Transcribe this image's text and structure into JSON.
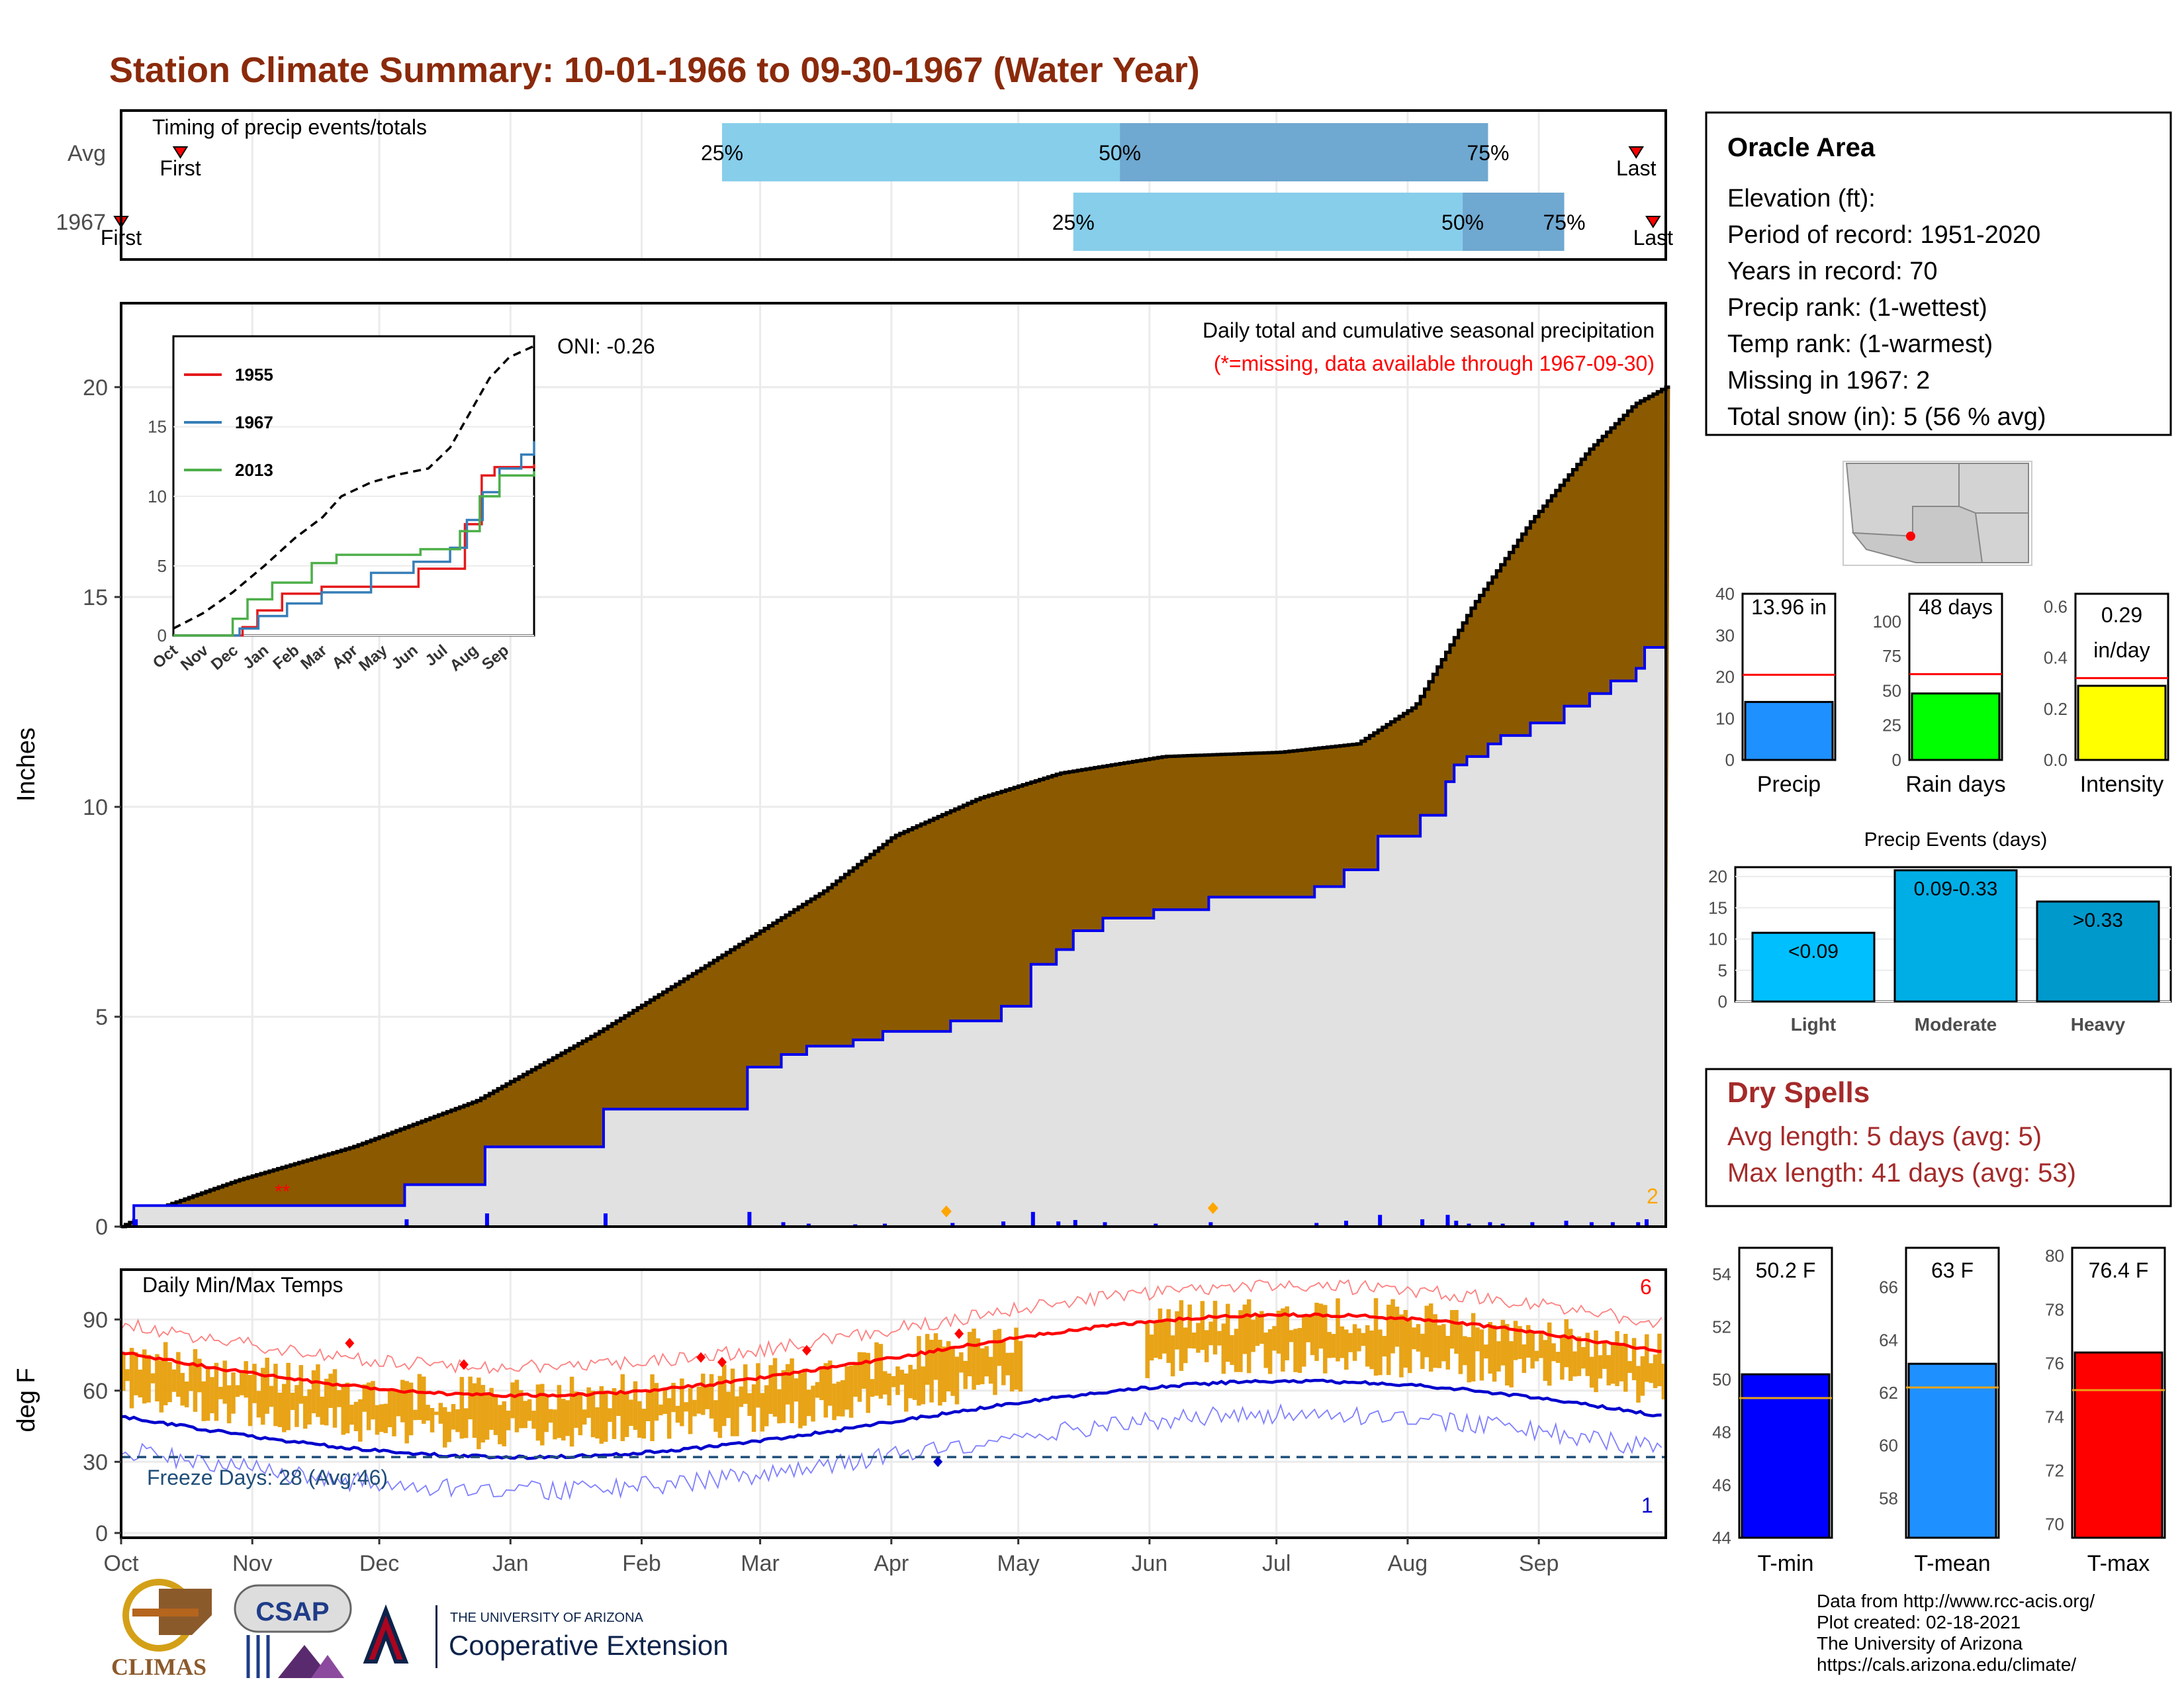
{
  "title": "Station Climate Summary: 10-01-1966 to 09-30-1967 (Water Year)",
  "timing": {
    "label": "Timing of precip events/totals",
    "rows": [
      {
        "label": "Avg",
        "first_label": "First",
        "last_label": "Last",
        "q25_label": "25%",
        "q50_label": "50%",
        "q75_label": "75%",
        "first_day": 14,
        "last_day": 358,
        "q25_day": 142,
        "q50_day": 236,
        "q75_day": 323
      },
      {
        "label": "1967",
        "first_label": "First",
        "last_label": "Last",
        "q25_label": "25%",
        "q50_label": "50%",
        "q75_label": "75%",
        "first_day": 0,
        "last_day": 362,
        "q25_day": 225,
        "q50_day": 317,
        "q75_day": 341
      }
    ]
  },
  "months": [
    "Oct",
    "Nov",
    "Dec",
    "Jan",
    "Feb",
    "Mar",
    "Apr",
    "May",
    "Jun",
    "Jul",
    "Aug",
    "Sep"
  ],
  "precip": {
    "title": "Daily total and cumulative seasonal precipitation",
    "missing_note": "(*=missing, data available through 1967-09-30)",
    "oni": "ONI: -0.26",
    "ylabel": "Inches",
    "y_ticks": [
      "0",
      "5",
      "10",
      "15",
      "20"
    ],
    "corner_count": "2"
  },
  "inset": {
    "legend": [
      {
        "name": "1955",
        "color": "#e41a1c"
      },
      {
        "name": "1967",
        "color": "#377eb8"
      },
      {
        "name": "2013",
        "color": "#4daf4a"
      }
    ],
    "y_ticks": [
      "0",
      "5",
      "10",
      "15"
    ],
    "x_ticks": [
      "Oct",
      "Nov",
      "Dec",
      "Jan",
      "Feb",
      "Mar",
      "Apr",
      "May",
      "Jun",
      "Jul",
      "Aug",
      "Sep"
    ]
  },
  "temps": {
    "title": "Daily Min/Max Temps",
    "ylabel": "deg F",
    "y_ticks": [
      "0",
      "30",
      "60",
      "90"
    ],
    "freeze_label": "Freeze Days: 28 (Avg:46)",
    "record_high_count": "6",
    "record_low_count": "1"
  },
  "info": {
    "station": "Oracle Area",
    "lines": [
      "Elevation (ft):",
      "Period of record: 1951-2020",
      "Years in record: 70",
      "Precip rank:  (1-wettest)",
      "Temp rank:  (1-warmest)",
      "Missing in 1967: 2",
      "Total snow (in): 5 (56 % avg)"
    ]
  },
  "mini_bars": [
    {
      "label": "Precip",
      "value_label": "13.96 in",
      "value": 13.96,
      "avg": 20.5,
      "ymax": 40,
      "ticks": [
        "0",
        "10",
        "20",
        "30",
        "40"
      ],
      "color": "#1e90ff"
    },
    {
      "label": "Rain days",
      "value_label": "48 days",
      "value": 48,
      "avg": 62,
      "ymax": 120,
      "ticks": [
        "0",
        "25",
        "50",
        "75",
        "100"
      ],
      "color": "#00ff00"
    },
    {
      "label": "Intensity",
      "value_label_1": "0.29",
      "value_label_2": "in/day",
      "value": 0.29,
      "avg": 0.32,
      "ymax": 0.65,
      "ticks": [
        "0.0",
        "0.2",
        "0.4",
        "0.6"
      ],
      "color": "#ffff00"
    }
  ],
  "events": {
    "title": "Precip Events (days)",
    "ticks": [
      "0",
      "5",
      "10",
      "15",
      "20"
    ],
    "bars": [
      {
        "category": "Light",
        "label": "<0.09",
        "value": 11,
        "color": "#00bfff"
      },
      {
        "category": "Moderate",
        "label": "0.09-0.33",
        "value": 21,
        "color": "#00aee6"
      },
      {
        "category": "Heavy",
        "label": ">0.33",
        "value": 16,
        "color": "#0099cc"
      }
    ]
  },
  "dry_spells": {
    "title": "Dry Spells",
    "avg": "Avg length: 5 days (avg: 5)",
    "max": "Max length: 41 days (avg: 53)"
  },
  "temp_bars": [
    {
      "label": "T-min",
      "value_label": "50.2 F",
      "value": 50.2,
      "avg": 49.3,
      "ymin": 44,
      "ymax": 55,
      "ticks": [
        "44",
        "46",
        "48",
        "50",
        "52",
        "54"
      ],
      "color": "#0000ff"
    },
    {
      "label": "T-mean",
      "value_label": "63 F",
      "value": 63.1,
      "avg": 62.2,
      "ymin": 56.5,
      "ymax": 67.5,
      "ticks": [
        "58",
        "60",
        "62",
        "64",
        "66"
      ],
      "color": "#1e90ff"
    },
    {
      "label": "T-max",
      "value_label": "76.4 F",
      "value": 76.4,
      "avg": 75.0,
      "ymin": 69.5,
      "ymax": 80.3,
      "ticks": [
        "70",
        "72",
        "74",
        "76",
        "78",
        "80"
      ],
      "color": "#ff0000"
    }
  ],
  "footer": {
    "lines": [
      "Data from http://www.rcc-acis.org/",
      "Plot created: 02-18-2021",
      "The University of Arizona",
      "https://cals.arizona.edu/climate/"
    ]
  },
  "logos": {
    "climas": "CLIMAS",
    "csap": "CSAP",
    "ua_small": "THE UNIVERSITY OF ARIZONA",
    "ua_big": "Cooperative Extension"
  }
}
